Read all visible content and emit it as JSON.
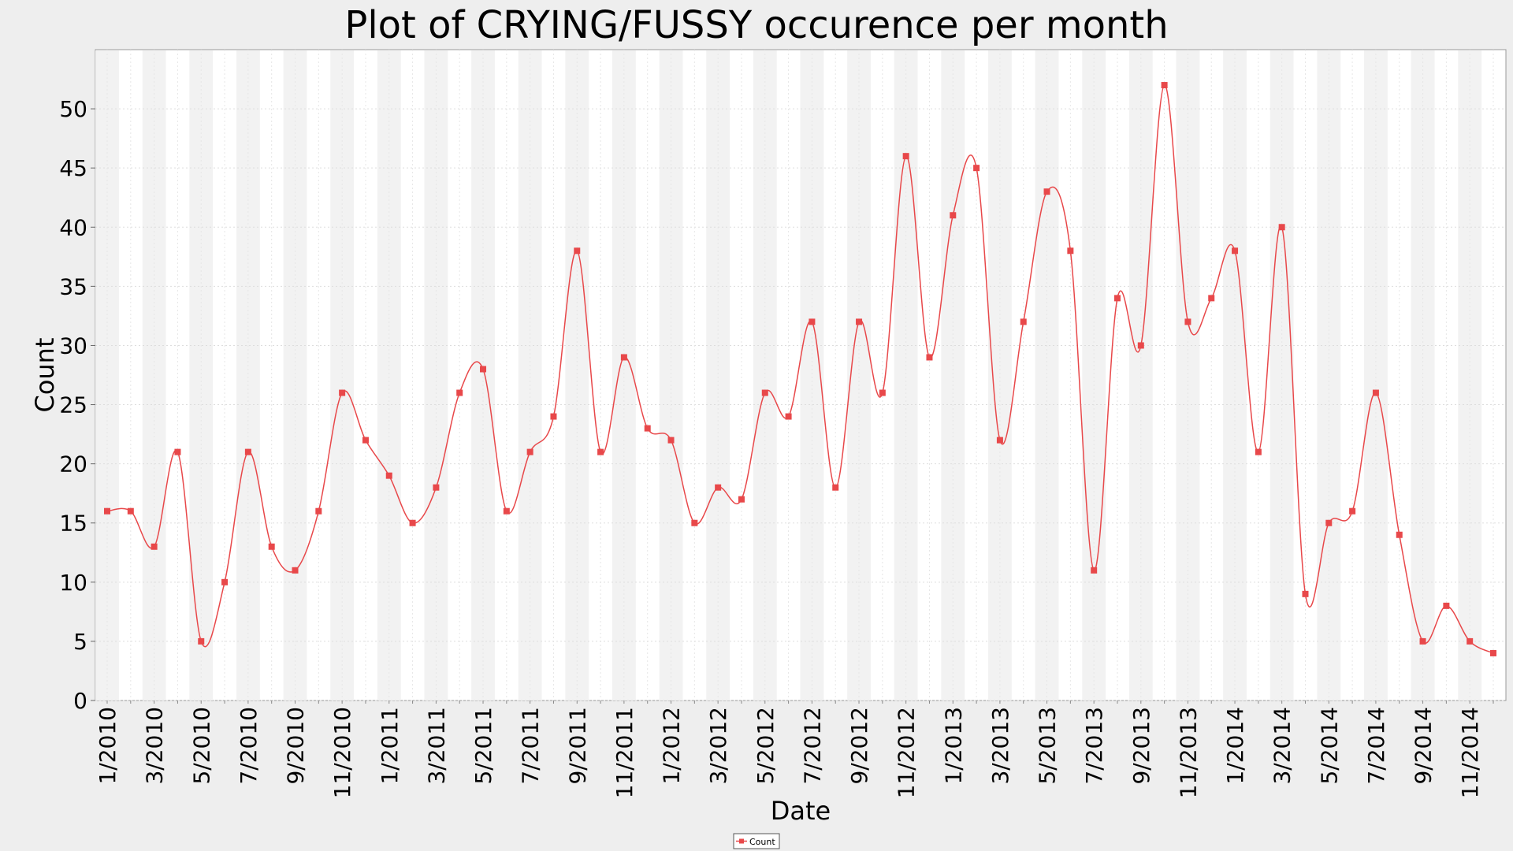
{
  "chart_data": {
    "type": "line",
    "title": "Plot of CRYING/FUSSY occurence per month",
    "xlabel": "Date",
    "ylabel": "Count",
    "ylim": [
      0,
      55
    ],
    "yticks": [
      0,
      5,
      10,
      15,
      20,
      25,
      30,
      35,
      40,
      45,
      50
    ],
    "x_tick_labels": [
      "1/2010",
      "3/2010",
      "5/2010",
      "7/2010",
      "9/2010",
      "11/2010",
      "1/2011",
      "3/2011",
      "5/2011",
      "7/2011",
      "9/2011",
      "11/2011",
      "1/2012",
      "3/2012",
      "5/2012",
      "7/2012",
      "9/2012",
      "11/2012",
      "1/2013",
      "3/2013",
      "5/2013",
      "7/2013",
      "9/2013",
      "11/2013",
      "1/2014",
      "3/2014",
      "5/2014",
      "7/2014",
      "9/2014",
      "11/2014"
    ],
    "grid": true,
    "legend_position": "bottom",
    "series": [
      {
        "name": "Count",
        "color": "#e8484a",
        "points": [
          {
            "x": "1/2010",
            "y": 16
          },
          {
            "x": "2/2010",
            "y": 16
          },
          {
            "x": "3/2010",
            "y": 13
          },
          {
            "x": "4/2010",
            "y": 21
          },
          {
            "x": "5/2010",
            "y": 5
          },
          {
            "x": "6/2010",
            "y": 10
          },
          {
            "x": "7/2010",
            "y": 21
          },
          {
            "x": "8/2010",
            "y": 13
          },
          {
            "x": "9/2010",
            "y": 11
          },
          {
            "x": "10/2010",
            "y": 16
          },
          {
            "x": "11/2010",
            "y": 26
          },
          {
            "x": "12/2010",
            "y": 22
          },
          {
            "x": "1/2011",
            "y": 19
          },
          {
            "x": "2/2011",
            "y": 15
          },
          {
            "x": "3/2011",
            "y": 18
          },
          {
            "x": "4/2011",
            "y": 26
          },
          {
            "x": "5/2011",
            "y": 28
          },
          {
            "x": "6/2011",
            "y": 16
          },
          {
            "x": "7/2011",
            "y": 21
          },
          {
            "x": "8/2011",
            "y": 24
          },
          {
            "x": "9/2011",
            "y": 38
          },
          {
            "x": "10/2011",
            "y": 21
          },
          {
            "x": "11/2011",
            "y": 29
          },
          {
            "x": "12/2011",
            "y": 23
          },
          {
            "x": "1/2012",
            "y": 22
          },
          {
            "x": "2/2012",
            "y": 15
          },
          {
            "x": "3/2012",
            "y": 18
          },
          {
            "x": "4/2012",
            "y": 17
          },
          {
            "x": "5/2012",
            "y": 26
          },
          {
            "x": "6/2012",
            "y": 24
          },
          {
            "x": "7/2012",
            "y": 32
          },
          {
            "x": "8/2012",
            "y": 18
          },
          {
            "x": "9/2012",
            "y": 32
          },
          {
            "x": "10/2012",
            "y": 26
          },
          {
            "x": "11/2012",
            "y": 46
          },
          {
            "x": "12/2012",
            "y": 29
          },
          {
            "x": "1/2013",
            "y": 41
          },
          {
            "x": "2/2013",
            "y": 45
          },
          {
            "x": "3/2013",
            "y": 22
          },
          {
            "x": "4/2013",
            "y": 32
          },
          {
            "x": "5/2013",
            "y": 43
          },
          {
            "x": "6/2013",
            "y": 38
          },
          {
            "x": "7/2013",
            "y": 11
          },
          {
            "x": "8/2013",
            "y": 34
          },
          {
            "x": "9/2013",
            "y": 30
          },
          {
            "x": "10/2013",
            "y": 52
          },
          {
            "x": "11/2013",
            "y": 32
          },
          {
            "x": "12/2013",
            "y": 34
          },
          {
            "x": "1/2014",
            "y": 38
          },
          {
            "x": "2/2014",
            "y": 21
          },
          {
            "x": "3/2014",
            "y": 40
          },
          {
            "x": "4/2014",
            "y": 9
          },
          {
            "x": "5/2014",
            "y": 15
          },
          {
            "x": "6/2014",
            "y": 16
          },
          {
            "x": "7/2014",
            "y": 26
          },
          {
            "x": "8/2014",
            "y": 14
          },
          {
            "x": "9/2014",
            "y": 5
          },
          {
            "x": "10/2014",
            "y": 8
          },
          {
            "x": "11/2014",
            "y": 5
          },
          {
            "x": "12/2014",
            "y": 4
          }
        ]
      }
    ]
  }
}
